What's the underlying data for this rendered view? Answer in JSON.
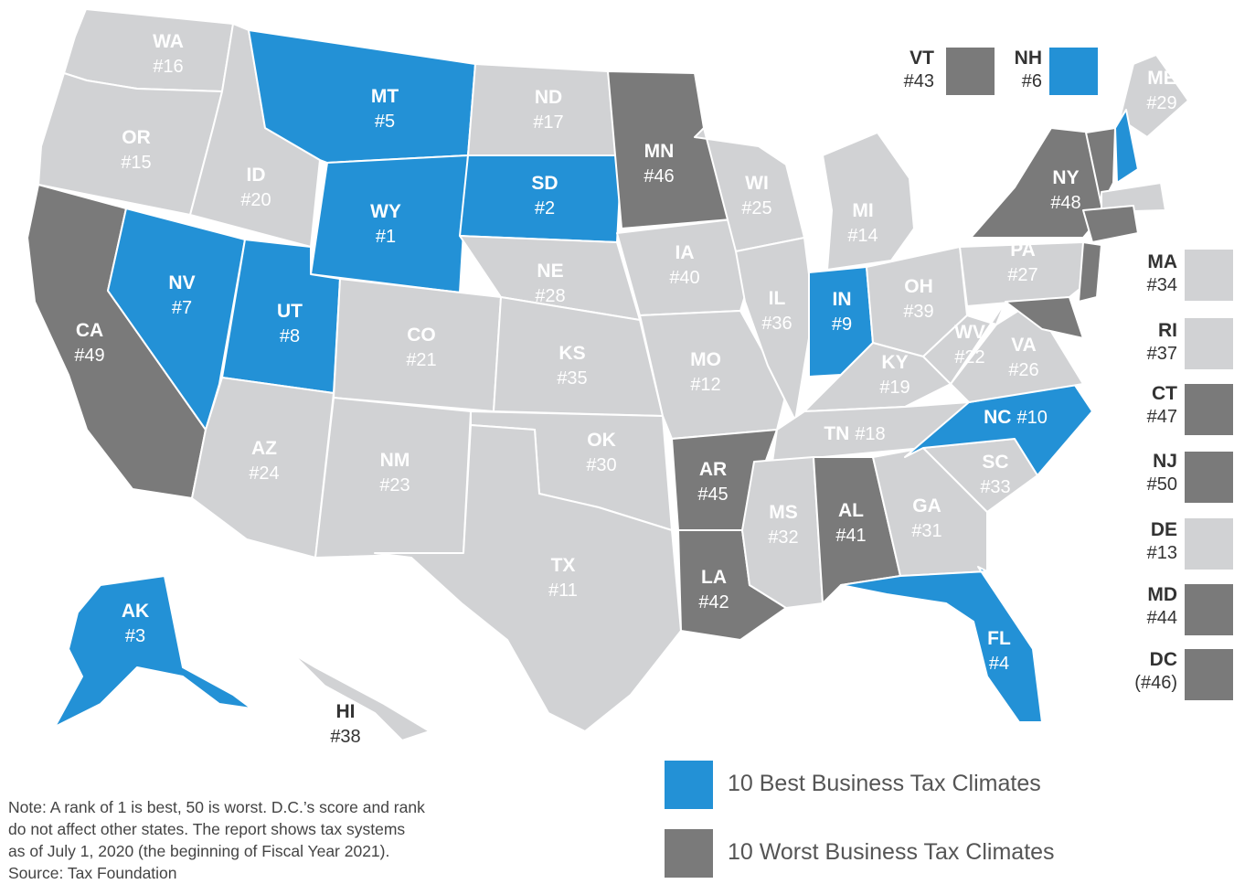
{
  "colors": {
    "best": "#2391d6",
    "worst": "#7a7a7a",
    "neutral": "#d1d2d4",
    "label_on_color": "#ffffff",
    "label_on_neutral": "#ffffff",
    "label_outside": "#333333"
  },
  "states": [
    {
      "code": "WA",
      "rank": "#16",
      "category": "neutral"
    },
    {
      "code": "OR",
      "rank": "#15",
      "category": "neutral"
    },
    {
      "code": "CA",
      "rank": "#49",
      "category": "worst"
    },
    {
      "code": "ID",
      "rank": "#20",
      "category": "neutral"
    },
    {
      "code": "NV",
      "rank": "#7",
      "category": "best"
    },
    {
      "code": "MT",
      "rank": "#5",
      "category": "best"
    },
    {
      "code": "WY",
      "rank": "#1",
      "category": "best"
    },
    {
      "code": "UT",
      "rank": "#8",
      "category": "best"
    },
    {
      "code": "AZ",
      "rank": "#24",
      "category": "neutral"
    },
    {
      "code": "CO",
      "rank": "#21",
      "category": "neutral"
    },
    {
      "code": "NM",
      "rank": "#23",
      "category": "neutral"
    },
    {
      "code": "ND",
      "rank": "#17",
      "category": "neutral"
    },
    {
      "code": "SD",
      "rank": "#2",
      "category": "best"
    },
    {
      "code": "NE",
      "rank": "#28",
      "category": "neutral"
    },
    {
      "code": "KS",
      "rank": "#35",
      "category": "neutral"
    },
    {
      "code": "OK",
      "rank": "#30",
      "category": "neutral"
    },
    {
      "code": "TX",
      "rank": "#11",
      "category": "neutral"
    },
    {
      "code": "MN",
      "rank": "#46",
      "category": "worst"
    },
    {
      "code": "IA",
      "rank": "#40",
      "category": "neutral"
    },
    {
      "code": "MO",
      "rank": "#12",
      "category": "neutral"
    },
    {
      "code": "AR",
      "rank": "#45",
      "category": "worst"
    },
    {
      "code": "LA",
      "rank": "#42",
      "category": "worst"
    },
    {
      "code": "WI",
      "rank": "#25",
      "category": "neutral"
    },
    {
      "code": "IL",
      "rank": "#36",
      "category": "neutral"
    },
    {
      "code": "MI",
      "rank": "#14",
      "category": "neutral"
    },
    {
      "code": "IN",
      "rank": "#9",
      "category": "best"
    },
    {
      "code": "OH",
      "rank": "#39",
      "category": "neutral"
    },
    {
      "code": "KY",
      "rank": "#19",
      "category": "neutral"
    },
    {
      "code": "TN",
      "rank": "#18",
      "category": "neutral"
    },
    {
      "code": "MS",
      "rank": "#32",
      "category": "neutral"
    },
    {
      "code": "AL",
      "rank": "#41",
      "category": "worst"
    },
    {
      "code": "GA",
      "rank": "#31",
      "category": "neutral"
    },
    {
      "code": "FL",
      "rank": "#4",
      "category": "best"
    },
    {
      "code": "SC",
      "rank": "#33",
      "category": "neutral"
    },
    {
      "code": "NC",
      "rank": "#10",
      "category": "best"
    },
    {
      "code": "VA",
      "rank": "#26",
      "category": "neutral"
    },
    {
      "code": "WV",
      "rank": "#22",
      "category": "neutral"
    },
    {
      "code": "PA",
      "rank": "#27",
      "category": "neutral"
    },
    {
      "code": "NY",
      "rank": "#48",
      "category": "worst"
    },
    {
      "code": "ME",
      "rank": "#29",
      "category": "neutral"
    },
    {
      "code": "AK",
      "rank": "#3",
      "category": "best"
    },
    {
      "code": "HI",
      "rank": "#38",
      "category": "neutral"
    }
  ],
  "small_states": [
    {
      "code": "VT",
      "rank": "#43",
      "category": "worst"
    },
    {
      "code": "NH",
      "rank": "#6",
      "category": "best"
    },
    {
      "code": "MA",
      "rank": "#34",
      "category": "neutral"
    },
    {
      "code": "RI",
      "rank": "#37",
      "category": "neutral"
    },
    {
      "code": "CT",
      "rank": "#47",
      "category": "worst"
    },
    {
      "code": "NJ",
      "rank": "#50",
      "category": "worst"
    },
    {
      "code": "DE",
      "rank": "#13",
      "category": "neutral"
    },
    {
      "code": "MD",
      "rank": "#44",
      "category": "worst"
    },
    {
      "code": "DC",
      "rank": "(#46)",
      "category": "worst"
    }
  ],
  "legend": {
    "best_label": "10 Best Business Tax Climates",
    "worst_label": "10 Worst Business Tax Climates"
  },
  "note": {
    "lines": [
      "Note: A rank of 1 is best, 50 is worst. D.C.’s score and rank",
      "do not affect other states. The report shows tax systems",
      "as of July 1, 2020 (the beginning of Fiscal Year 2021)."
    ],
    "source": "Source: Tax Foundation"
  }
}
